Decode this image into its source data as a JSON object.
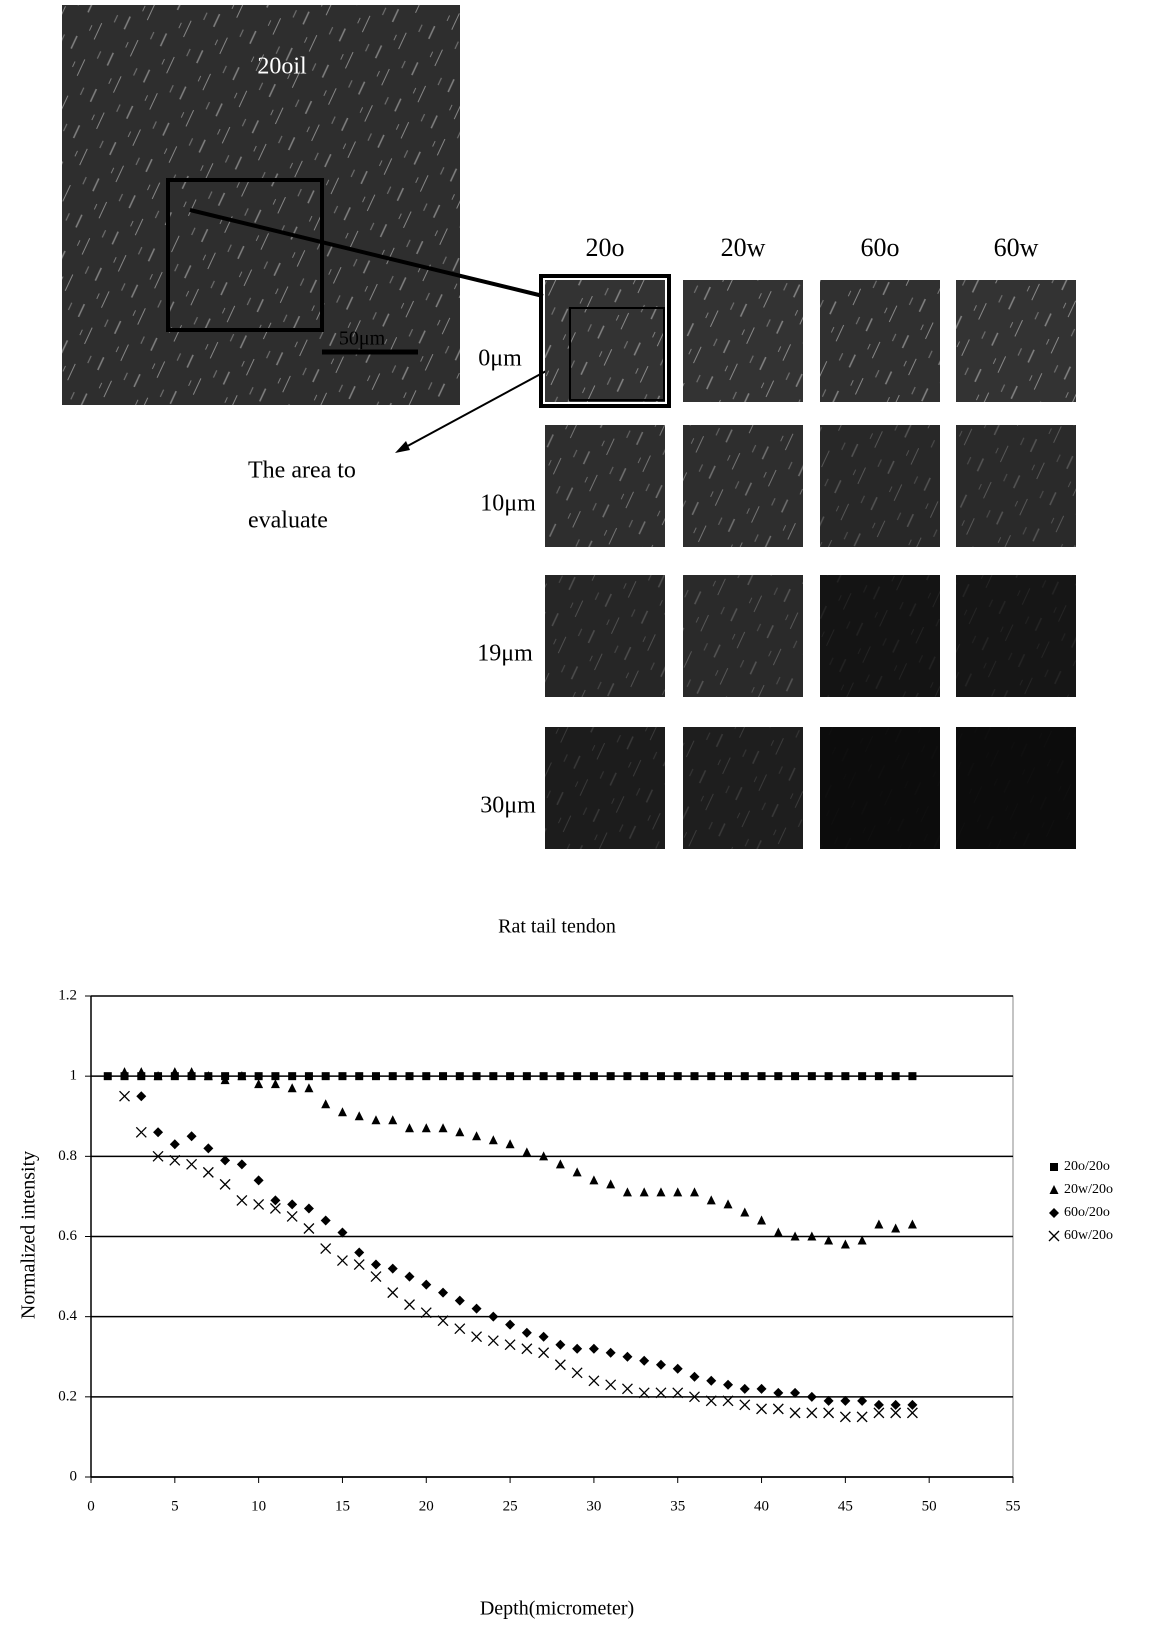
{
  "figure": {
    "overview_label": "20oil",
    "scale_bar": "50μm",
    "columns": [
      "20o",
      "20w",
      "60o",
      "60w"
    ],
    "rows": [
      "0μm",
      "10μm",
      "19μm",
      "30μm"
    ],
    "annotation": [
      "The area to",
      "evaluate"
    ]
  },
  "chart_data": {
    "type": "scatter",
    "title": "Rat tail tendon",
    "x_label": "Depth(micrometer)",
    "y_label": "Normalized intensity",
    "xlim": [
      0,
      55
    ],
    "xticks": [
      0,
      5,
      10,
      15,
      20,
      25,
      30,
      35,
      40,
      45,
      50,
      55
    ],
    "ylim": [
      0,
      1.2
    ],
    "yticks": [
      0,
      0.2,
      0.4,
      0.6,
      0.8,
      1,
      1.2
    ],
    "grid": true,
    "legend": "right",
    "series": [
      {
        "name": "20o/20o",
        "color": "#000000",
        "marker": "square",
        "x": [
          1,
          2,
          3,
          4,
          5,
          6,
          7,
          8,
          9,
          10,
          11,
          12,
          13,
          14,
          15,
          16,
          17,
          18,
          19,
          20,
          21,
          22,
          23,
          24,
          25,
          26,
          27,
          28,
          29,
          30,
          31,
          32,
          33,
          34,
          35,
          36,
          37,
          38,
          39,
          40,
          41,
          42,
          43,
          44,
          45,
          46,
          47,
          48,
          49
        ],
        "values": [
          1,
          1,
          1,
          1,
          1,
          1,
          1,
          1,
          1,
          1,
          1,
          1,
          1,
          1,
          1,
          1,
          1,
          1,
          1,
          1,
          1,
          1,
          1,
          1,
          1,
          1,
          1,
          1,
          1,
          1,
          1,
          1,
          1,
          1,
          1,
          1,
          1,
          1,
          1,
          1,
          1,
          1,
          1,
          1,
          1,
          1,
          1,
          1,
          1
        ]
      },
      {
        "name": "20w/20o",
        "color": "#000000",
        "marker": "triangle",
        "x": [
          2,
          3,
          4,
          5,
          6,
          7,
          8,
          9,
          10,
          11,
          12,
          13,
          14,
          15,
          16,
          17,
          18,
          19,
          20,
          21,
          22,
          23,
          24,
          25,
          26,
          27,
          28,
          29,
          30,
          31,
          32,
          33,
          34,
          35,
          36,
          37,
          38,
          39,
          40,
          41,
          42,
          43,
          44,
          45,
          46,
          47,
          48,
          49
        ],
        "values": [
          1.01,
          1.01,
          1.0,
          1.01,
          1.01,
          1.0,
          0.99,
          1.0,
          0.98,
          0.98,
          0.97,
          0.97,
          0.93,
          0.91,
          0.9,
          0.89,
          0.89,
          0.87,
          0.87,
          0.87,
          0.86,
          0.85,
          0.84,
          0.83,
          0.81,
          0.8,
          0.78,
          0.76,
          0.74,
          0.73,
          0.71,
          0.71,
          0.71,
          0.71,
          0.71,
          0.69,
          0.68,
          0.66,
          0.64,
          0.61,
          0.6,
          0.6,
          0.59,
          0.58,
          0.59,
          0.63,
          0.62,
          0.63
        ]
      },
      {
        "name": "60o/20o",
        "color": "#000000",
        "marker": "diamond",
        "x": [
          3,
          4,
          5,
          6,
          7,
          8,
          9,
          10,
          11,
          12,
          13,
          14,
          15,
          16,
          17,
          18,
          19,
          20,
          21,
          22,
          23,
          24,
          25,
          26,
          27,
          28,
          29,
          30,
          31,
          32,
          33,
          34,
          35,
          36,
          37,
          38,
          39,
          40,
          41,
          42,
          43,
          44,
          45,
          46,
          47,
          48,
          49
        ],
        "values": [
          0.95,
          0.86,
          0.83,
          0.85,
          0.82,
          0.79,
          0.78,
          0.74,
          0.69,
          0.68,
          0.67,
          0.64,
          0.61,
          0.56,
          0.53,
          0.52,
          0.5,
          0.48,
          0.46,
          0.44,
          0.42,
          0.4,
          0.38,
          0.36,
          0.35,
          0.33,
          0.32,
          0.32,
          0.31,
          0.3,
          0.29,
          0.28,
          0.27,
          0.25,
          0.24,
          0.23,
          0.22,
          0.22,
          0.21,
          0.21,
          0.2,
          0.19,
          0.19,
          0.19,
          0.18,
          0.18,
          0.18
        ]
      },
      {
        "name": "60w/20o",
        "color": "#000000",
        "marker": "cross",
        "x": [
          2,
          3,
          4,
          5,
          6,
          7,
          8,
          9,
          10,
          11,
          12,
          13,
          14,
          15,
          16,
          17,
          18,
          19,
          20,
          21,
          22,
          23,
          24,
          25,
          26,
          27,
          28,
          29,
          30,
          31,
          32,
          33,
          34,
          35,
          36,
          37,
          38,
          39,
          40,
          41,
          42,
          43,
          44,
          45,
          46,
          47,
          48,
          49
        ],
        "values": [
          0.95,
          0.86,
          0.8,
          0.79,
          0.78,
          0.76,
          0.73,
          0.69,
          0.68,
          0.67,
          0.65,
          0.62,
          0.57,
          0.54,
          0.53,
          0.5,
          0.46,
          0.43,
          0.41,
          0.39,
          0.37,
          0.35,
          0.34,
          0.33,
          0.32,
          0.31,
          0.28,
          0.26,
          0.24,
          0.23,
          0.22,
          0.21,
          0.21,
          0.21,
          0.2,
          0.19,
          0.19,
          0.18,
          0.17,
          0.17,
          0.16,
          0.16,
          0.16,
          0.15,
          0.15,
          0.16,
          0.16,
          0.16
        ]
      }
    ]
  }
}
